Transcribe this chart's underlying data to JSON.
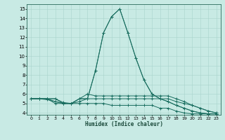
{
  "xlabel": "Humidex (Indice chaleur)",
  "ylabel": "",
  "bg_color": "#c8eae4",
  "grid_color": "#a8d4cc",
  "line_color": "#1a6e60",
  "xlim": [
    -0.5,
    23.5
  ],
  "ylim": [
    3.8,
    15.5
  ],
  "xticks": [
    0,
    1,
    2,
    3,
    4,
    5,
    6,
    7,
    8,
    9,
    10,
    11,
    12,
    13,
    14,
    15,
    16,
    17,
    18,
    19,
    20,
    21,
    22,
    23
  ],
  "yticks": [
    4,
    5,
    6,
    7,
    8,
    9,
    10,
    11,
    12,
    13,
    14,
    15
  ],
  "lines": [
    {
      "x": [
        0,
        1,
        2,
        3,
        4,
        5,
        6,
        7,
        8,
        9,
        10,
        11,
        12,
        13,
        14,
        15,
        16,
        17,
        18,
        19,
        20,
        21,
        22,
        23
      ],
      "y": [
        5.5,
        5.5,
        5.5,
        5.5,
        5.0,
        5.0,
        5.5,
        5.5,
        8.5,
        12.5,
        14.2,
        15.0,
        12.5,
        9.8,
        7.5,
        6.0,
        5.5,
        5.2,
        4.8,
        4.5,
        4.2,
        4.0,
        3.9,
        3.9
      ]
    },
    {
      "x": [
        0,
        1,
        2,
        3,
        4,
        5,
        6,
        7,
        8,
        9,
        10,
        11,
        12,
        13,
        14,
        15,
        16,
        17,
        18,
        19,
        20,
        21,
        22,
        23
      ],
      "y": [
        5.5,
        5.5,
        5.5,
        5.5,
        5.1,
        5.0,
        5.5,
        5.5,
        8.5,
        12.5,
        14.2,
        15.0,
        12.5,
        9.8,
        7.5,
        6.0,
        5.5,
        5.2,
        4.8,
        4.5,
        4.2,
        4.0,
        3.9,
        3.9
      ]
    },
    {
      "x": [
        0,
        1,
        2,
        3,
        4,
        5,
        6,
        7,
        8,
        9,
        10,
        11,
        12,
        13,
        14,
        15,
        16,
        17,
        18,
        19,
        20,
        21,
        22,
        23
      ],
      "y": [
        5.5,
        5.5,
        5.5,
        5.2,
        5.0,
        5.0,
        5.5,
        6.0,
        5.8,
        5.8,
        5.8,
        5.8,
        5.8,
        5.8,
        5.8,
        5.8,
        5.8,
        5.8,
        5.5,
        5.2,
        4.8,
        4.5,
        4.2,
        4.0
      ]
    },
    {
      "x": [
        0,
        1,
        2,
        3,
        4,
        5,
        6,
        7,
        8,
        9,
        10,
        11,
        12,
        13,
        14,
        15,
        16,
        17,
        18,
        19,
        20,
        21,
        22,
        23
      ],
      "y": [
        5.5,
        5.5,
        5.4,
        5.2,
        5.0,
        5.0,
        5.2,
        5.5,
        5.5,
        5.5,
        5.5,
        5.5,
        5.5,
        5.5,
        5.5,
        5.5,
        5.5,
        5.5,
        5.2,
        5.0,
        4.8,
        4.5,
        4.2,
        4.0
      ]
    },
    {
      "x": [
        0,
        1,
        2,
        3,
        4,
        5,
        6,
        7,
        8,
        9,
        10,
        11,
        12,
        13,
        14,
        15,
        16,
        17,
        18,
        19,
        20,
        21,
        22,
        23
      ],
      "y": [
        5.5,
        5.5,
        5.5,
        5.0,
        5.0,
        5.0,
        5.0,
        5.0,
        5.0,
        5.0,
        4.8,
        4.8,
        4.8,
        4.8,
        4.8,
        4.8,
        4.5,
        4.5,
        4.2,
        4.0,
        3.9,
        3.9,
        3.9,
        3.9
      ]
    }
  ]
}
